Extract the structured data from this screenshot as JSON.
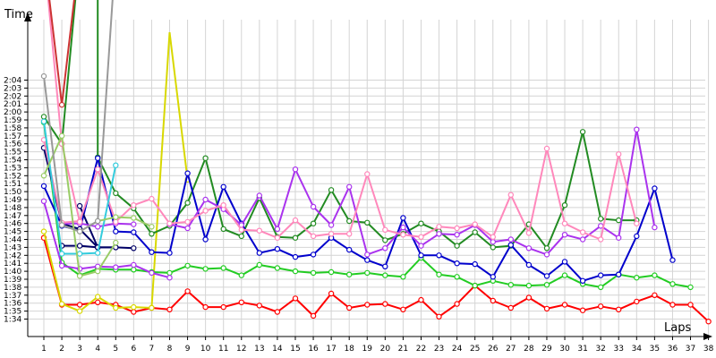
{
  "chart_data": {
    "type": "line",
    "ylabel": "Time",
    "xlabel": "Laps",
    "x_ticks": [
      "1",
      "2",
      "3",
      "4",
      "5",
      "6",
      "7",
      "8",
      "9",
      "10",
      "11",
      "12",
      "13",
      "14",
      "15",
      "16",
      "17",
      "18",
      "19",
      "20",
      "21",
      "22",
      "23",
      "24",
      "25",
      "26",
      "27",
      "28",
      "29",
      "30",
      "31",
      "32",
      "33",
      "34",
      "35",
      "36",
      "37",
      "38"
    ],
    "y_ticks": [
      "1:34",
      "1:35",
      "1:36",
      "1:37",
      "1:38",
      "1:39",
      "1:40",
      "1:41",
      "1:42",
      "1:43",
      "1:44",
      "1:45",
      "1:46",
      "1:47",
      "1:48",
      "1:49",
      "1:50",
      "1:51",
      "1:52",
      "1:53",
      "1:54",
      "1:55",
      "1:56",
      "1:57",
      "1:58",
      "1:59",
      "2:00",
      "2:01",
      "2:02",
      "2:03",
      "2:04"
    ],
    "xlim": [
      1,
      38
    ],
    "ylim_seconds": [
      93,
      127
    ],
    "grid": true,
    "series": [
      {
        "color": "#ff0000",
        "values": [
          [
            1,
            104.2
          ],
          [
            2,
            95.8
          ],
          [
            3,
            95.8
          ],
          [
            4,
            96.1
          ],
          [
            5,
            95.8
          ],
          [
            6,
            94.9
          ],
          [
            7,
            95.4
          ],
          [
            8,
            95.2
          ],
          [
            9,
            97.5
          ],
          [
            10,
            95.5
          ],
          [
            11,
            95.5
          ],
          [
            12,
            96.1
          ],
          [
            13,
            95.7
          ],
          [
            14,
            94.9
          ],
          [
            15,
            96.6
          ],
          [
            16,
            94.4
          ],
          [
            17,
            97.2
          ],
          [
            18,
            95.4
          ],
          [
            19,
            95.8
          ],
          [
            20,
            95.9
          ],
          [
            21,
            95.2
          ],
          [
            22,
            96.4
          ],
          [
            23,
            94.3
          ],
          [
            24,
            95.9
          ],
          [
            25,
            98.2
          ],
          [
            26,
            96.3
          ],
          [
            27,
            95.4
          ],
          [
            28,
            96.7
          ],
          [
            29,
            95.3
          ],
          [
            30,
            95.8
          ],
          [
            31,
            95.1
          ],
          [
            32,
            95.6
          ],
          [
            33,
            95.2
          ],
          [
            34,
            96.2
          ],
          [
            35,
            97.0
          ],
          [
            36,
            95.8
          ],
          [
            37,
            95.8
          ],
          [
            38,
            93.7
          ]
        ]
      },
      {
        "color": "#d8d800",
        "values": [
          [
            1,
            105.0
          ],
          [
            2,
            95.9
          ],
          [
            3,
            95.0
          ],
          [
            4,
            96.8
          ],
          [
            5,
            95.4
          ],
          [
            6,
            95.5
          ],
          [
            7,
            95.4
          ],
          [
            8,
            130.0
          ]
        ]
      },
      {
        "color": "#d8d800",
        "values": [
          [
            8,
            130.0
          ],
          [
            9,
            111.5
          ]
        ]
      },
      {
        "color": "#22cc22",
        "values": [
          [
            1,
            118.7
          ],
          [
            2,
            101.1
          ],
          [
            3,
            99.5
          ],
          [
            4,
            100.3
          ],
          [
            5,
            100.2
          ],
          [
            6,
            100.2
          ],
          [
            7,
            99.9
          ],
          [
            8,
            99.8
          ],
          [
            9,
            100.7
          ],
          [
            10,
            100.3
          ],
          [
            11,
            100.4
          ],
          [
            12,
            99.5
          ],
          [
            13,
            100.8
          ],
          [
            14,
            100.4
          ],
          [
            15,
            100.0
          ],
          [
            16,
            99.8
          ],
          [
            17,
            99.9
          ],
          [
            18,
            99.6
          ],
          [
            19,
            99.8
          ],
          [
            20,
            99.5
          ],
          [
            21,
            99.3
          ],
          [
            22,
            101.7
          ],
          [
            23,
            99.6
          ],
          [
            24,
            99.3
          ],
          [
            25,
            98.2
          ],
          [
            26,
            98.8
          ],
          [
            27,
            98.3
          ],
          [
            28,
            98.2
          ],
          [
            29,
            98.3
          ],
          [
            30,
            99.5
          ],
          [
            31,
            98.4
          ],
          [
            32,
            98.0
          ],
          [
            33,
            99.6
          ],
          [
            34,
            99.2
          ],
          [
            35,
            99.5
          ],
          [
            36,
            98.4
          ],
          [
            37,
            98.0
          ]
        ]
      },
      {
        "color": "#228b22",
        "values": [
          [
            1,
            119.4
          ],
          [
            2,
            116.0
          ],
          [
            3,
            140.0
          ]
        ]
      },
      {
        "color": "#228b22",
        "values": [
          [
            4,
            140.0
          ],
          [
            4,
            114.3
          ],
          [
            5,
            109.8
          ],
          [
            6,
            107.9
          ],
          [
            7,
            104.7
          ],
          [
            8,
            105.7
          ],
          [
            9,
            108.6
          ],
          [
            10,
            114.2
          ],
          [
            11,
            105.3
          ],
          [
            12,
            104.4
          ],
          [
            13,
            109.2
          ],
          [
            14,
            104.3
          ],
          [
            15,
            104.2
          ],
          [
            16,
            106.0
          ],
          [
            17,
            110.2
          ],
          [
            18,
            106.3
          ],
          [
            19,
            106.1
          ],
          [
            20,
            103.9
          ],
          [
            21,
            104.7
          ],
          [
            22,
            106.0
          ],
          [
            23,
            105.0
          ],
          [
            24,
            103.2
          ],
          [
            25,
            104.9
          ],
          [
            26,
            103.0
          ],
          [
            27,
            103.2
          ],
          [
            28,
            105.9
          ],
          [
            29,
            102.9
          ],
          [
            30,
            108.3
          ],
          [
            31,
            117.5
          ],
          [
            32,
            106.6
          ],
          [
            33,
            106.4
          ],
          [
            34,
            106.4
          ]
        ]
      },
      {
        "color": "#0000cc",
        "values": [
          [
            1,
            110.7
          ],
          [
            2,
            105.7
          ],
          [
            3,
            105.1
          ],
          [
            4,
            114.2
          ],
          [
            5,
            105.0
          ],
          [
            6,
            104.9
          ],
          [
            7,
            102.4
          ],
          [
            8,
            102.3
          ],
          [
            9,
            112.3
          ],
          [
            10,
            104.0
          ],
          [
            11,
            110.6
          ],
          [
            12,
            106.0
          ],
          [
            13,
            102.3
          ],
          [
            14,
            102.8
          ],
          [
            15,
            101.8
          ],
          [
            16,
            102.1
          ],
          [
            17,
            104.2
          ],
          [
            18,
            102.7
          ],
          [
            19,
            101.4
          ],
          [
            20,
            100.6
          ],
          [
            21,
            106.7
          ],
          [
            22,
            102.0
          ],
          [
            23,
            102.0
          ],
          [
            24,
            101.0
          ],
          [
            25,
            100.9
          ],
          [
            26,
            99.3
          ],
          [
            27,
            103.3
          ],
          [
            28,
            100.8
          ],
          [
            29,
            99.4
          ],
          [
            30,
            101.2
          ],
          [
            31,
            98.8
          ],
          [
            32,
            99.5
          ],
          [
            33,
            99.6
          ],
          [
            34,
            104.4
          ],
          [
            35,
            110.4
          ],
          [
            36,
            101.4
          ]
        ]
      },
      {
        "color": "#000066",
        "values": [
          [
            1,
            115.5
          ],
          [
            2,
            106.0
          ],
          [
            3,
            105.3
          ],
          [
            4,
            103.0
          ],
          [
            5,
            103.0
          ],
          [
            6,
            102.9
          ]
        ]
      },
      {
        "color": "#000066",
        "values": [
          [
            3,
            108.2
          ],
          [
            4,
            103.0
          ],
          [
            5,
            103.0
          ]
        ]
      },
      {
        "color": "#000066",
        "values": [
          [
            2,
            103.2
          ],
          [
            3,
            103.2
          ],
          [
            4,
            103.0
          ]
        ]
      },
      {
        "color": "#aa33ee",
        "values": [
          [
            1,
            108.8
          ],
          [
            2,
            100.7
          ],
          [
            3,
            100.3
          ],
          [
            4,
            100.6
          ],
          [
            5,
            100.5
          ],
          [
            6,
            100.8
          ],
          [
            7,
            99.8
          ],
          [
            8,
            99.2
          ]
        ]
      },
      {
        "color": "#aa33ee",
        "values": [
          [
            8,
            105.9
          ],
          [
            9,
            105.4
          ],
          [
            10,
            109.0
          ],
          [
            11,
            107.8
          ],
          [
            12,
            105.8
          ],
          [
            13,
            109.5
          ],
          [
            14,
            105.3
          ],
          [
            15,
            112.8
          ],
          [
            16,
            108.1
          ],
          [
            17,
            105.8
          ],
          [
            18,
            110.6
          ],
          [
            19,
            102.1
          ],
          [
            20,
            102.9
          ],
          [
            21,
            105.5
          ],
          [
            22,
            103.2
          ],
          [
            23,
            104.7
          ],
          [
            24,
            104.6
          ],
          [
            25,
            105.8
          ],
          [
            26,
            103.7
          ],
          [
            27,
            104.0
          ],
          [
            28,
            102.9
          ],
          [
            29,
            102.1
          ],
          [
            30,
            104.6
          ],
          [
            31,
            104.0
          ],
          [
            32,
            105.7
          ],
          [
            33,
            104.2
          ],
          [
            34,
            117.8
          ],
          [
            35,
            105.5
          ]
        ]
      },
      {
        "color": "#aa33ee",
        "values": [
          [
            2,
            106.0
          ],
          [
            3,
            106.0
          ],
          [
            4,
            105.6
          ],
          [
            5,
            106.0
          ],
          [
            6,
            105.9
          ]
        ]
      },
      {
        "color": "#ff88bb",
        "values": [
          [
            1,
            116.5
          ],
          [
            2,
            106.1
          ],
          [
            3,
            106.3
          ],
          [
            4,
            112.8
          ],
          [
            5,
            106.2
          ],
          [
            6,
            108.3
          ],
          [
            7,
            109.1
          ],
          [
            8,
            106.0
          ],
          [
            9,
            106.2
          ],
          [
            10,
            107.6
          ],
          [
            11,
            108.3
          ],
          [
            12,
            105.2
          ],
          [
            13,
            105.1
          ],
          [
            14,
            104.2
          ],
          [
            15,
            106.4
          ],
          [
            16,
            104.4
          ],
          [
            17,
            104.7
          ],
          [
            18,
            104.7
          ],
          [
            19,
            112.2
          ],
          [
            20,
            105.2
          ],
          [
            21,
            104.6
          ],
          [
            22,
            104.3
          ],
          [
            23,
            105.6
          ],
          [
            24,
            105.4
          ],
          [
            25,
            105.9
          ],
          [
            26,
            104.3
          ],
          [
            27,
            109.6
          ],
          [
            28,
            104.8
          ],
          [
            29,
            115.4
          ],
          [
            30,
            106.0
          ],
          [
            31,
            104.9
          ],
          [
            32,
            104.0
          ],
          [
            33,
            114.7
          ],
          [
            34,
            106.0
          ]
        ]
      },
      {
        "color": "#ff88bb",
        "values": [
          [
            1,
            140.0
          ],
          [
            2,
            116.0
          ],
          [
            3,
            106.2
          ]
        ]
      },
      {
        "color": "#33ccdd",
        "values": [
          [
            1,
            118.8
          ],
          [
            2,
            102.2
          ],
          [
            3,
            102.2
          ],
          [
            4,
            102.3
          ],
          [
            5,
            113.3
          ]
        ]
      },
      {
        "color": "#99cc66",
        "values": [
          [
            1,
            112.0
          ],
          [
            2,
            117.0
          ],
          [
            3,
            99.4
          ],
          [
            4,
            100.0
          ],
          [
            5,
            103.6
          ]
        ]
      },
      {
        "color": "#99cc66",
        "values": [
          [
            2,
            105.8
          ],
          [
            3,
            105.0
          ],
          [
            4,
            106.3
          ],
          [
            5,
            106.8
          ],
          [
            6,
            106.7
          ],
          [
            7,
            105.6
          ]
        ]
      },
      {
        "color": "#999999",
        "values": [
          [
            1,
            124.5
          ],
          [
            2,
            105.8
          ],
          [
            3,
            105.0
          ],
          [
            4,
            106.3
          ],
          [
            5,
            140.0
          ]
        ]
      },
      {
        "color": "#cc3333",
        "values": [
          [
            1,
            140.0
          ],
          [
            2,
            120.9
          ],
          [
            3,
            140.0
          ]
        ]
      }
    ]
  }
}
